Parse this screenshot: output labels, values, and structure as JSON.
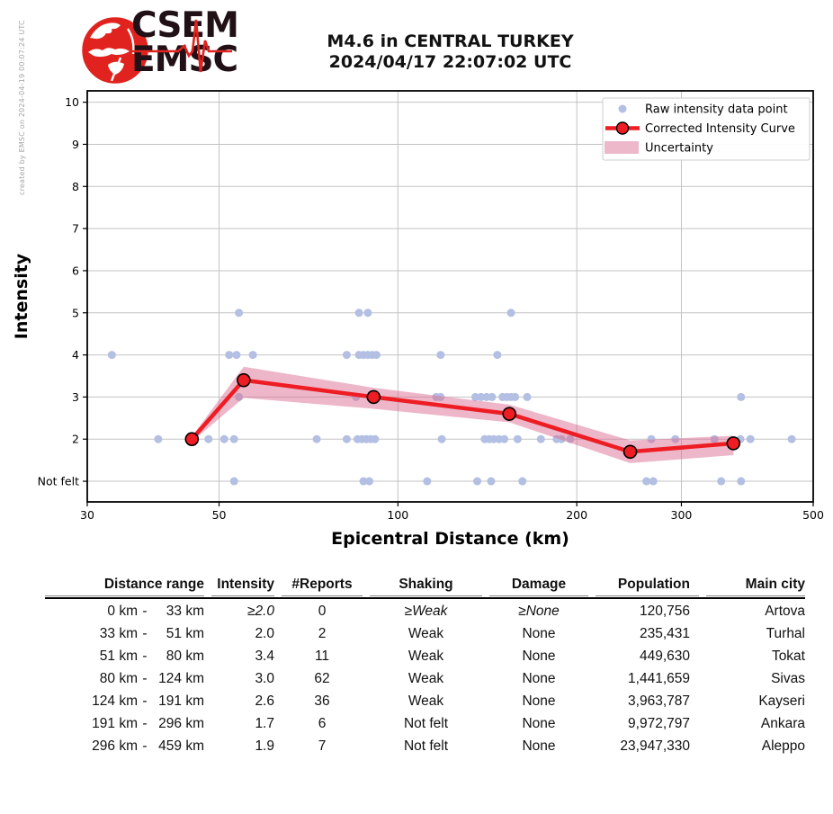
{
  "meta": {
    "created_by": "created by EMSC on 2024-04-19 00:07:24 UTC"
  },
  "logo": {
    "line1": "CSEM",
    "line2": "EMSC",
    "red": "#e0231e",
    "text_color": "#211116"
  },
  "chart_data": {
    "type": "scatter",
    "title": "M4.6 in CENTRAL TURKEY 2024/04/17 22:07:02 UTC",
    "title_line1": "M4.6 in CENTRAL TURKEY",
    "title_line2": "2024/04/17 22:07:02 UTC",
    "xlabel": "Epicentral Distance (km)",
    "ylabel": "Intensity",
    "x_scale": "log",
    "xlim": [
      30,
      500
    ],
    "ylim": [
      0.51,
      10.27
    ],
    "x_ticks": [
      30,
      50,
      100,
      200,
      300,
      500
    ],
    "x_gridlines": [
      50,
      100,
      200,
      300
    ],
    "y_ticks": [
      [
        1,
        "Not felt"
      ],
      [
        2,
        "2"
      ],
      [
        3,
        "3"
      ],
      [
        4,
        "4"
      ],
      [
        5,
        "5"
      ],
      [
        6,
        "6"
      ],
      [
        7,
        "7"
      ],
      [
        8,
        "8"
      ],
      [
        9,
        "9"
      ],
      [
        10,
        "10"
      ]
    ],
    "grid": true,
    "legend": {
      "position": "upper right",
      "entries": [
        "Raw intensity data point",
        "Corrected Intensity Curve",
        "Uncertainty"
      ]
    },
    "scatter": {
      "name": "Raw intensity data point",
      "points": [
        [
          54,
          5
        ],
        [
          86,
          5
        ],
        [
          89,
          5
        ],
        [
          155,
          5
        ],
        [
          33,
          4
        ],
        [
          52,
          4
        ],
        [
          53.5,
          4
        ],
        [
          57,
          4
        ],
        [
          82,
          4
        ],
        [
          86,
          4
        ],
        [
          87.5,
          4
        ],
        [
          89,
          4
        ],
        [
          90.5,
          4
        ],
        [
          92,
          4
        ],
        [
          118,
          4
        ],
        [
          147,
          4
        ],
        [
          54,
          3
        ],
        [
          85,
          3
        ],
        [
          116,
          3
        ],
        [
          118,
          3
        ],
        [
          135,
          3
        ],
        [
          138,
          3
        ],
        [
          141,
          3
        ],
        [
          144,
          3
        ],
        [
          150,
          3
        ],
        [
          152.5,
          3
        ],
        [
          155,
          3
        ],
        [
          157.5,
          3
        ],
        [
          165,
          3
        ],
        [
          378,
          3
        ],
        [
          39.5,
          2
        ],
        [
          48,
          2
        ],
        [
          51,
          2
        ],
        [
          53,
          2
        ],
        [
          73,
          2
        ],
        [
          82,
          2
        ],
        [
          85.5,
          2
        ],
        [
          87,
          2
        ],
        [
          88.5,
          2
        ],
        [
          90,
          2
        ],
        [
          91.5,
          2
        ],
        [
          118.5,
          2
        ],
        [
          140,
          2
        ],
        [
          142.5,
          2
        ],
        [
          145,
          2
        ],
        [
          148,
          2
        ],
        [
          151,
          2
        ],
        [
          159,
          2
        ],
        [
          174,
          2
        ],
        [
          185,
          2
        ],
        [
          188.5,
          2
        ],
        [
          195,
          2
        ],
        [
          267,
          2
        ],
        [
          293,
          2
        ],
        [
          341,
          2
        ],
        [
          377,
          2
        ],
        [
          392,
          2
        ],
        [
          460,
          2
        ],
        [
          53,
          1
        ],
        [
          87.5,
          1
        ],
        [
          89.5,
          1
        ],
        [
          112,
          1
        ],
        [
          136,
          1
        ],
        [
          143.5,
          1
        ],
        [
          162,
          1
        ],
        [
          262,
          1
        ],
        [
          269,
          1
        ],
        [
          350,
          1
        ],
        [
          378,
          1
        ]
      ]
    },
    "curve": {
      "name": "Corrected Intensity Curve",
      "x": [
        45,
        55,
        91,
        154,
        246,
        367
      ],
      "y": [
        2.0,
        3.4,
        3.0,
        2.6,
        1.7,
        1.9
      ]
    },
    "uncertainty": {
      "name": "Uncertainty",
      "x": [
        45,
        55,
        91,
        154,
        246,
        367
      ],
      "upper": [
        2.06,
        3.72,
        3.22,
        2.82,
        1.97,
        2.08
      ],
      "lower": [
        1.94,
        2.98,
        2.72,
        2.4,
        1.43,
        1.62
      ]
    },
    "colors": {
      "scatter": "#b3bfe3",
      "curve": "#ee1c23",
      "band": "#db7093",
      "band_opacity": 0.5,
      "band_legend": "#edb8c9",
      "grid": "#c3c3c3",
      "spine": "#000000"
    }
  },
  "table": {
    "headers": [
      "Distance range",
      "Intensity",
      "#Reports",
      "Shaking",
      "Damage",
      "Population",
      "Main city"
    ],
    "rows": [
      {
        "from": "0 km",
        "to": "33 km",
        "intensity": "≥2.0",
        "reports": "0",
        "shaking": "≥Weak",
        "damage": "≥None",
        "population": "120,756",
        "city": "Artova",
        "italic": true
      },
      {
        "from": "33 km",
        "to": "51 km",
        "intensity": "2.0",
        "reports": "2",
        "shaking": "Weak",
        "damage": "None",
        "population": "235,431",
        "city": "Turhal",
        "italic": false
      },
      {
        "from": "51 km",
        "to": "80 km",
        "intensity": "3.4",
        "reports": "11",
        "shaking": "Weak",
        "damage": "None",
        "population": "449,630",
        "city": "Tokat",
        "italic": false
      },
      {
        "from": "80 km",
        "to": "124 km",
        "intensity": "3.0",
        "reports": "62",
        "shaking": "Weak",
        "damage": "None",
        "population": "1,441,659",
        "city": "Sivas",
        "italic": false
      },
      {
        "from": "124 km",
        "to": "191 km",
        "intensity": "2.6",
        "reports": "36",
        "shaking": "Weak",
        "damage": "None",
        "population": "3,963,787",
        "city": "Kayseri",
        "italic": false
      },
      {
        "from": "191 km",
        "to": "296 km",
        "intensity": "1.7",
        "reports": "6",
        "shaking": "Not felt",
        "damage": "None",
        "population": "9,972,797",
        "city": "Ankara",
        "italic": false
      },
      {
        "from": "296 km",
        "to": "459 km",
        "intensity": "1.9",
        "reports": "7",
        "shaking": "Not felt",
        "damage": "None",
        "population": "23,947,330",
        "city": "Aleppo",
        "italic": false
      }
    ]
  }
}
